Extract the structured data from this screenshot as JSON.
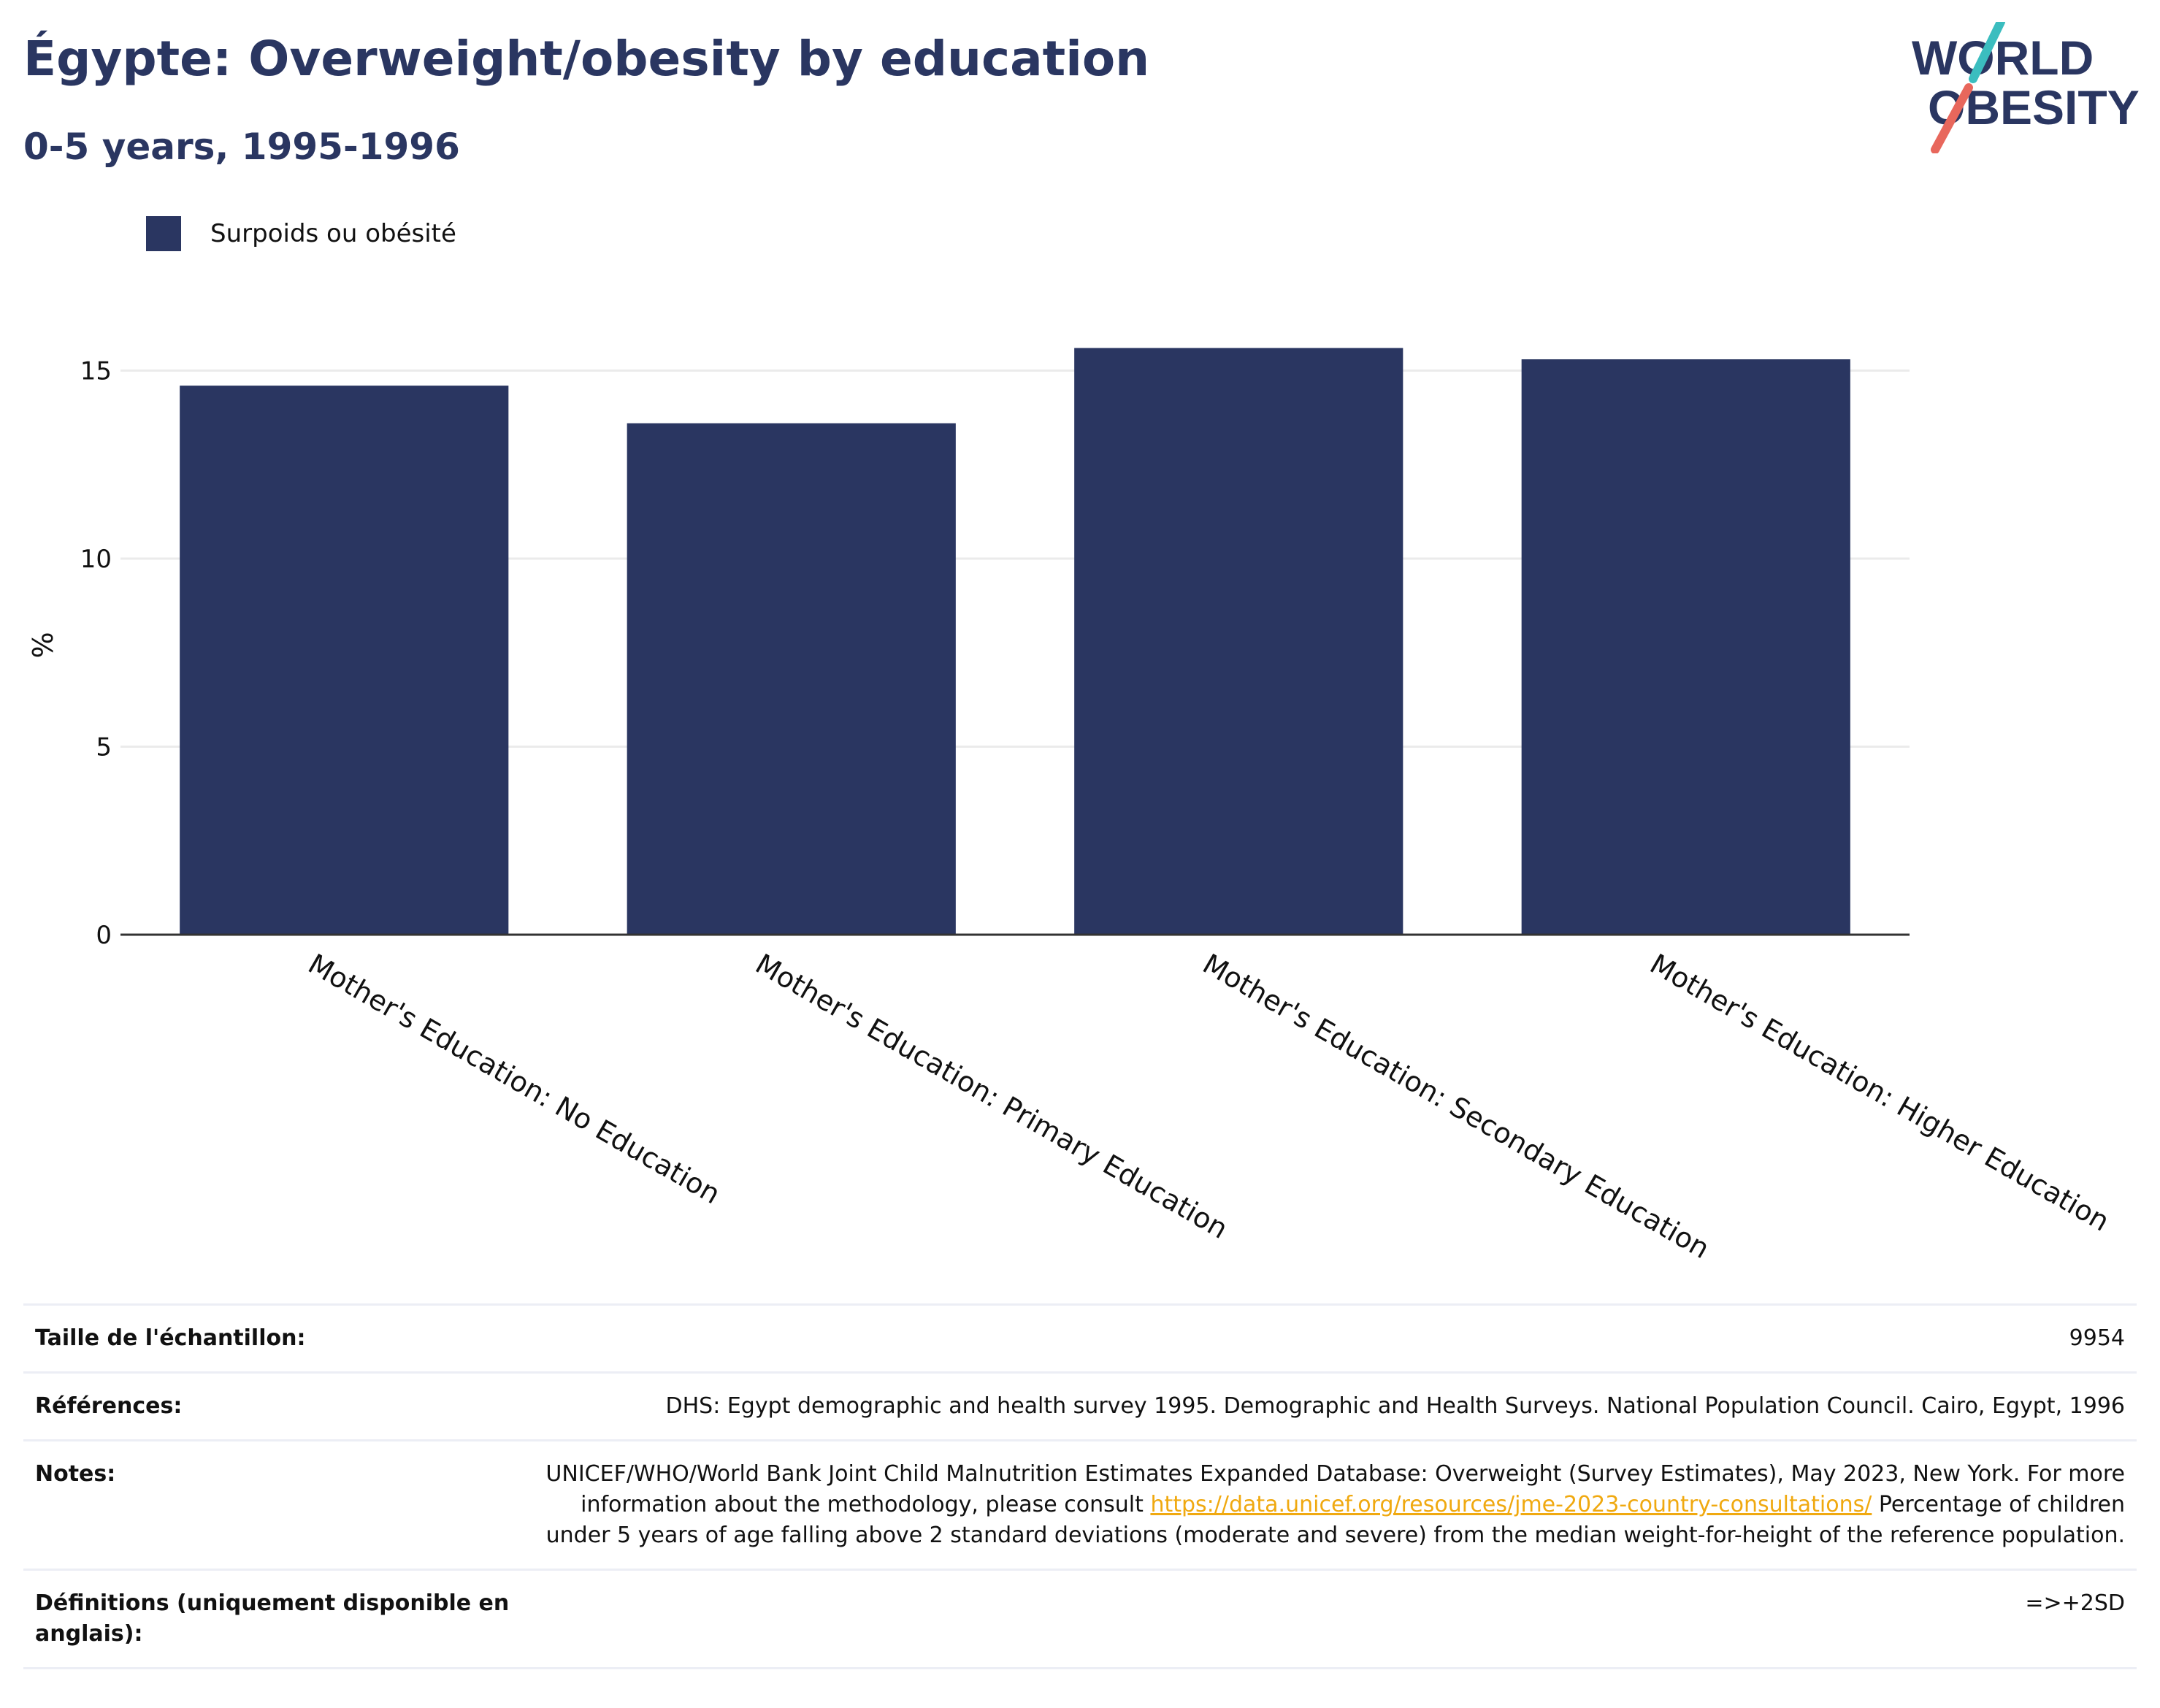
{
  "header": {
    "title": "Égypte: Overweight/obesity by education",
    "subtitle": "0-5 years, 1995-1996"
  },
  "logo": {
    "line1": "WORLD",
    "line2": "OBESITY",
    "accent_colors": [
      "#3bbdbf",
      "#e8675c"
    ]
  },
  "legend": {
    "label": "Surpoids ou obésité",
    "color": "#2a3661"
  },
  "chart_data": {
    "type": "bar",
    "categories": [
      "Mother's Education: No Education",
      "Mother's Education: Primary Education",
      "Mother's Education: Secondary Education",
      "Mother's Education: Higher Education"
    ],
    "series": [
      {
        "name": "Surpoids ou obésité",
        "values": [
          14.6,
          13.6,
          15.6,
          15.3
        ]
      }
    ],
    "ylabel": "%",
    "xlabel": "",
    "ylim": [
      0,
      16.5
    ],
    "yticks": [
      0,
      5,
      10,
      15
    ],
    "grid": true,
    "legend_position": "top-left",
    "bar_color": "#2a3661"
  },
  "info": {
    "sample_size": {
      "label": "Taille de l'échantillon:",
      "value": "9954"
    },
    "references": {
      "label": "Références:",
      "value": "DHS: Egypt demographic and health survey 1995. Demographic and Health Surveys. National Population Council. Cairo, Egypt, 1996"
    },
    "notes": {
      "label": "Notes:",
      "text_before": "UNICEF/WHO/World Bank Joint Child Malnutrition Estimates Expanded Database: Overweight (Survey Estimates), May 2023, New York. For more information about the methodology, please consult ",
      "link": "https://data.unicef.org/resources/jme-2023-country-consultations/",
      "text_after": " Percentage of children under 5 years of age falling above 2 standard deviations (moderate and severe) from the median weight-for-height of the reference population."
    },
    "definitions": {
      "label": "Définitions (uniquement disponible en anglais):",
      "value": "=>+2SD"
    }
  }
}
